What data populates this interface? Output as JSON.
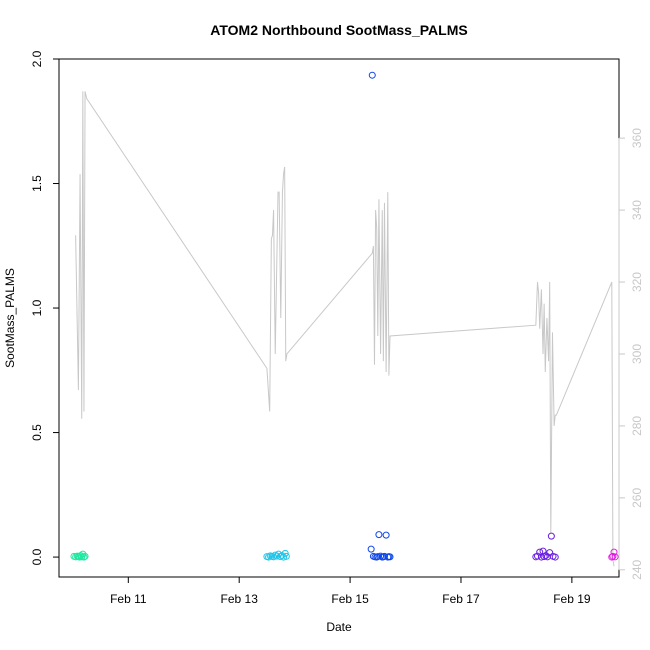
{
  "chart_data": {
    "type": "scatter",
    "title": "ATOM2 Northbound SootMass_PALMS",
    "xlabel": "Date",
    "ylabel": "SootMass_PALMS",
    "x_unit": "days of February",
    "xlim": [
      9.75,
      19.85
    ],
    "ylim": [
      -0.08,
      2.0
    ],
    "y_ticks": [
      0.0,
      0.5,
      1.0,
      1.5,
      2.0
    ],
    "y_tick_labels": [
      "0.0",
      "0.5",
      "1.0",
      "1.5",
      "2.0"
    ],
    "x_ticks": [
      11,
      13,
      15,
      17,
      19
    ],
    "x_tick_labels": [
      "Feb 11",
      "Feb 13",
      "Feb 15",
      "Feb 17",
      "Feb 19"
    ],
    "right_axis": {
      "ylim": [
        238,
        382
      ],
      "ticks": [
        240,
        260,
        280,
        300,
        320,
        340,
        360
      ],
      "tick_labels": [
        "240",
        "260",
        "280",
        "300",
        "320",
        "340",
        "360"
      ],
      "color": "#c8c8c8"
    },
    "grid": false,
    "legend": "none",
    "colors": {
      "line": "#c8c8c8",
      "point_scale": [
        "#1ee8a0",
        "#20c4e8",
        "#1048e8",
        "#6a1ee0",
        "#e01ee0"
      ]
    },
    "line_series": {
      "x": [
        10.05,
        10.1,
        10.13,
        10.16,
        10.18,
        10.2,
        10.22,
        10.25,
        13.5,
        13.55,
        13.58,
        13.6,
        13.62,
        13.65,
        13.7,
        13.72,
        13.75,
        13.78,
        13.8,
        13.82,
        13.84,
        13.86,
        15.4,
        15.42,
        15.44,
        15.46,
        15.48,
        15.5,
        15.52,
        15.55,
        15.58,
        15.6,
        15.62,
        15.65,
        15.68,
        15.7,
        15.72,
        18.35,
        18.38,
        18.4,
        18.42,
        18.45,
        18.48,
        18.5,
        18.52,
        18.55,
        18.58,
        18.6,
        18.62,
        18.65,
        18.68,
        18.7,
        18.72,
        19.72,
        19.74,
        19.76
      ],
      "y": [
        333,
        290,
        350,
        282,
        373,
        284,
        373,
        371,
        296,
        284,
        332,
        333,
        340,
        300,
        345,
        345,
        310,
        345,
        350,
        352,
        298,
        300,
        328,
        330,
        297,
        340,
        335,
        305,
        343,
        300,
        340,
        298,
        342,
        295,
        345,
        294,
        305,
        308,
        320,
        317,
        307,
        318,
        300,
        314,
        295,
        310,
        298,
        320,
        250,
        306,
        280,
        283,
        283,
        320,
        243,
        241
      ]
    },
    "series": [
      {
        "color": "#1ee8a0",
        "x": [
          10.02,
          10.05,
          10.08,
          10.1,
          10.12,
          10.14,
          10.16,
          10.18,
          10.2,
          10.22
        ],
        "y": [
          0.003,
          0.001,
          0.004,
          0.002,
          0.0,
          0.006,
          0.001,
          0.012,
          0.0,
          0.003
        ]
      },
      {
        "color": "#20c4e8",
        "x": [
          13.5,
          13.53,
          13.56,
          13.59,
          13.62,
          13.65,
          13.68,
          13.71,
          13.74,
          13.77,
          13.8,
          13.83,
          13.85
        ],
        "y": [
          0.002,
          0.0,
          0.005,
          0.003,
          0.001,
          0.008,
          0.004,
          0.012,
          0.002,
          0.006,
          0.0,
          0.015,
          0.003
        ]
      },
      {
        "color": "#1048e8",
        "x": [
          15.38,
          15.4,
          15.42,
          15.45,
          15.48,
          15.5,
          15.52,
          15.55,
          15.58,
          15.6,
          15.62,
          15.65,
          15.68,
          15.7,
          15.72
        ],
        "y": [
          0.032,
          1.935,
          0.003,
          0.001,
          0.0,
          0.002,
          0.09,
          0.004,
          0.0,
          0.001,
          0.003,
          0.088,
          0.0,
          0.002,
          0.001
        ]
      },
      {
        "color": "#6a1ee0",
        "x": [
          18.35,
          18.38,
          18.42,
          18.45,
          18.48,
          18.5,
          18.53,
          18.56,
          18.6,
          18.63,
          18.66,
          18.7
        ],
        "y": [
          0.001,
          0.004,
          0.02,
          0.0,
          0.024,
          0.002,
          0.006,
          0.001,
          0.018,
          0.084,
          0.003,
          0.0
        ]
      },
      {
        "color": "#e01ee0",
        "x": [
          19.72,
          19.74,
          19.76,
          19.78
        ],
        "y": [
          0.0,
          0.003,
          0.02,
          0.001
        ]
      }
    ]
  }
}
